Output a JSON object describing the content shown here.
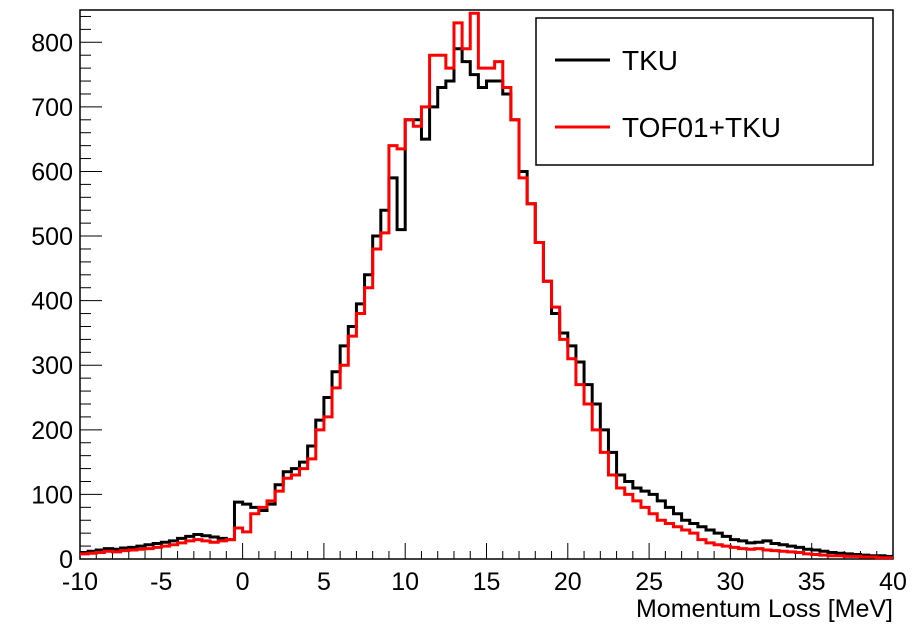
{
  "chart_data": {
    "type": "line",
    "title": "",
    "xlabel": "Momentum Loss [MeV]",
    "ylabel": "",
    "xlim": [
      -10,
      40
    ],
    "ylim": [
      0,
      850
    ],
    "x_ticks": [
      -10,
      -5,
      0,
      5,
      10,
      15,
      20,
      25,
      30,
      35,
      40
    ],
    "y_ticks": [
      0,
      100,
      200,
      300,
      400,
      500,
      600,
      700,
      800
    ],
    "grid": false,
    "legend_position": "top-right",
    "bin_edges_start": -10,
    "bin_width": 0.5,
    "series": [
      {
        "name": "TKU",
        "color": "#000000",
        "values": [
          10,
          12,
          14,
          16,
          15,
          17,
          18,
          20,
          22,
          24,
          26,
          28,
          32,
          35,
          38,
          36,
          34,
          32,
          30,
          88,
          85,
          80,
          75,
          85,
          115,
          135,
          140,
          150,
          175,
          215,
          250,
          290,
          330,
          360,
          395,
          440,
          500,
          540,
          590,
          510,
          680,
          680,
          650,
          700,
          730,
          740,
          790,
          770,
          750,
          730,
          740,
          740,
          720,
          680,
          600,
          550,
          490,
          430,
          380,
          350,
          330,
          305,
          270,
          240,
          200,
          165,
          130,
          120,
          110,
          105,
          100,
          90,
          80,
          70,
          60,
          55,
          50,
          45,
          40,
          35,
          30,
          28,
          25,
          26,
          28,
          24,
          22,
          20,
          18,
          15,
          14,
          12,
          10,
          9,
          8,
          7,
          6,
          5,
          5,
          4
        ]
      },
      {
        "name": "TOF01+TKU",
        "color": "#ff0000",
        "values": [
          8,
          9,
          10,
          12,
          11,
          13,
          14,
          15,
          16,
          18,
          20,
          22,
          25,
          28,
          30,
          28,
          26,
          28,
          30,
          48,
          42,
          70,
          80,
          90,
          105,
          125,
          130,
          140,
          155,
          200,
          220,
          265,
          300,
          345,
          380,
          420,
          480,
          505,
          640,
          635,
          680,
          670,
          700,
          780,
          780,
          760,
          830,
          790,
          845,
          760,
          760,
          770,
          730,
          680,
          590,
          550,
          490,
          430,
          390,
          340,
          310,
          270,
          240,
          200,
          165,
          130,
          110,
          100,
          90,
          80,
          70,
          60,
          55,
          50,
          45,
          40,
          30,
          25,
          22,
          20,
          18,
          16,
          15,
          16,
          14,
          13,
          12,
          11,
          10,
          8,
          7,
          6,
          5,
          5,
          4,
          4,
          3,
          3,
          2,
          2
        ]
      }
    ]
  }
}
